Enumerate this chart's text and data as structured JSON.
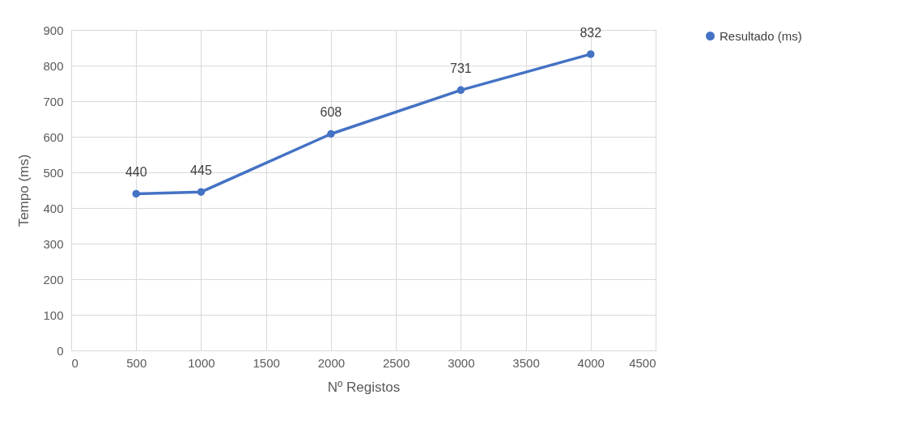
{
  "chart_data": {
    "type": "line",
    "xlabel": "Nº Registos",
    "ylabel": "Tempo (ms)",
    "x": [
      500,
      1000,
      2000,
      3000,
      4000
    ],
    "series": [
      {
        "name": "Resultado (ms)",
        "color": "#4472c4",
        "values": [
          440,
          445,
          608,
          731,
          832
        ]
      }
    ],
    "xlim": [
      0,
      4500
    ],
    "xticks": [
      0,
      500,
      1000,
      1500,
      2000,
      2500,
      3000,
      3500,
      4000,
      4500
    ],
    "ylim": [
      0,
      900
    ],
    "yticks": [
      0,
      100,
      200,
      300,
      400,
      500,
      600,
      700,
      800,
      900
    ],
    "grid": true,
    "legend": "right",
    "marker": "circle",
    "line_style": "solid",
    "data_labels": true
  }
}
